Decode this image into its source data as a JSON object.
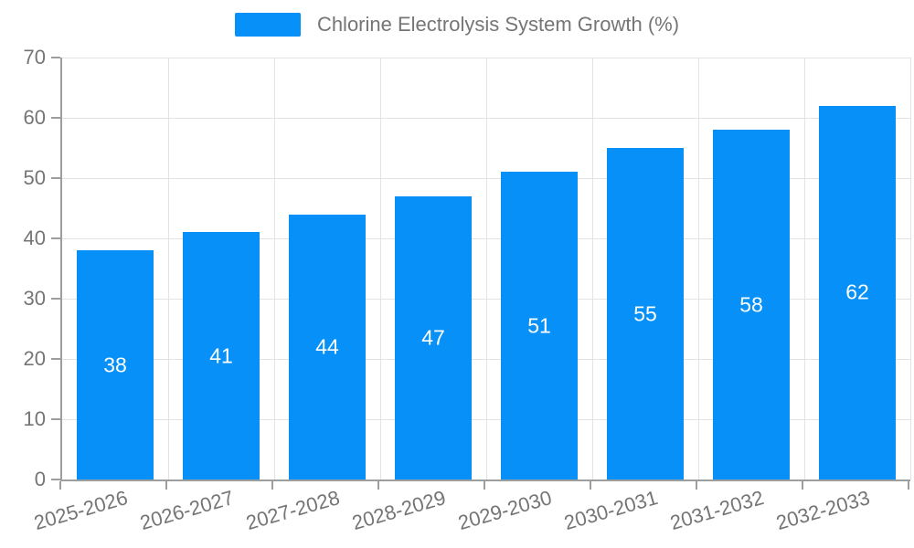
{
  "legend": {
    "label": "Chlorine Electrolysis System Growth (%)"
  },
  "chart_data": {
    "type": "bar",
    "title": "Chlorine Electrolysis System Growth (%)",
    "categories": [
      "2025-2026",
      "2026-2027",
      "2027-2028",
      "2028-2029",
      "2029-2030",
      "2030-2031",
      "2031-2032",
      "2032-2033"
    ],
    "values": [
      38,
      41,
      44,
      47,
      51,
      55,
      58,
      62
    ],
    "xlabel": "",
    "ylabel": "",
    "ylim": [
      0,
      70
    ],
    "yticks": [
      0,
      10,
      20,
      30,
      40,
      50,
      60,
      70
    ],
    "grid": true,
    "legend_position": "top-center",
    "bar_labels_position": "inside-middle",
    "colors": {
      "bar": "#0690f8",
      "value_label": "#ffffff",
      "axis_text": "#757575",
      "grid_line": "#e3e3e3",
      "axis_line": "#9e9e9e"
    }
  }
}
